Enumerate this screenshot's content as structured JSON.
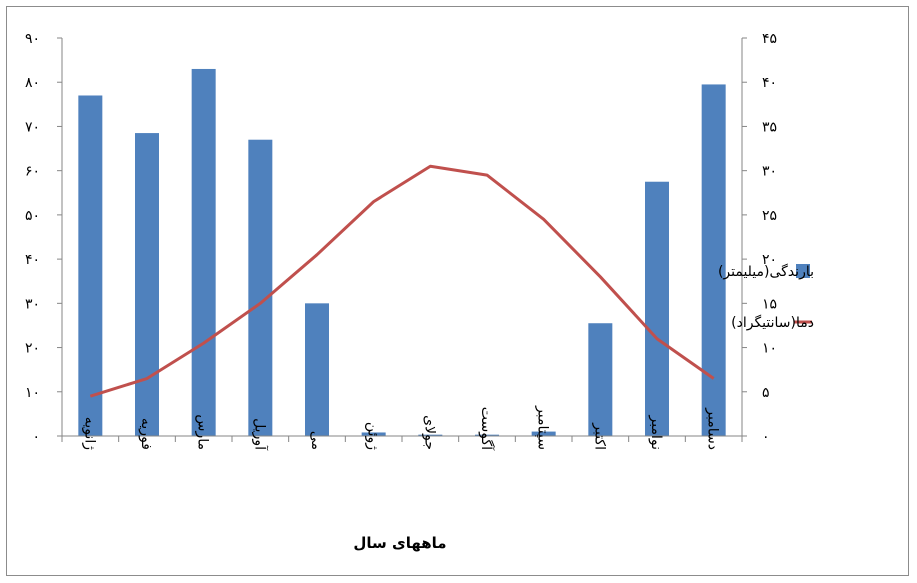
{
  "chart_data": {
    "type": "bar+line",
    "title": "",
    "xlabel": "ماههای سال",
    "categories": [
      "ژانویه",
      "فوریه",
      "مارس",
      "آوریل",
      "می",
      "ژوئن",
      "جولای",
      "آگوست",
      "سپتامبر",
      "اکتبر",
      "نوامبر",
      "دسامبر"
    ],
    "y_left": {
      "min": 0,
      "max": 90,
      "step": 10,
      "tick_labels": [
        "۰",
        "۱۰",
        "۲۰",
        "۳۰",
        "۴۰",
        "۵۰",
        "۶۰",
        "۷۰",
        "۸۰",
        "۹۰"
      ]
    },
    "y_right": {
      "min": 0,
      "max": 45,
      "step": 5,
      "tick_labels": [
        "۰",
        "۵",
        "۱۰",
        "۱۵",
        "۲۰",
        "۲۵",
        "۳۰",
        "۳۵",
        "۴۰",
        "۴۵"
      ]
    },
    "series": [
      {
        "name": "بارندگی(میلیمتر)",
        "type": "bar",
        "axis": "left",
        "color": "#4f81bd",
        "values": [
          77,
          68.5,
          83,
          67,
          30,
          0.8,
          0.3,
          0.3,
          1,
          25.5,
          57.5,
          79.5
        ]
      },
      {
        "name": "دما(سانتیگراد)",
        "type": "line",
        "axis": "right",
        "color": "#c0504d",
        "values": [
          4.5,
          6.5,
          10.5,
          15,
          20.5,
          26.5,
          30.5,
          29.5,
          24.5,
          18,
          11,
          6.5
        ]
      }
    ],
    "grid": false,
    "legend_position": "right"
  }
}
